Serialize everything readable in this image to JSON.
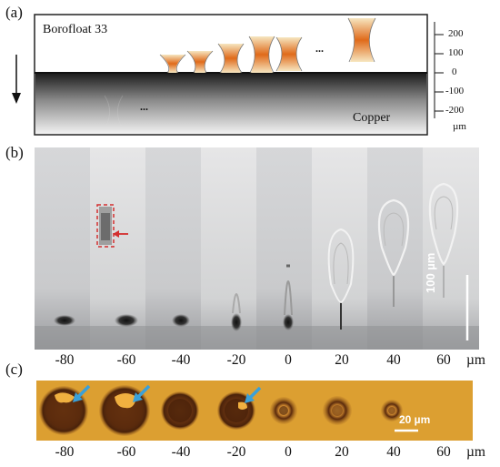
{
  "panel_a": {
    "label": "(a)",
    "top_material": "Borofloat 33",
    "bottom_material": "Copper",
    "ellipsis_top": "...",
    "ellipsis_bottom": "...",
    "scale": {
      "ticks": [
        "200",
        "100",
        "0",
        "-100",
        "-200"
      ],
      "unit": "µm"
    }
  },
  "panel_b": {
    "label": "(b)",
    "scale_bar": "100 µm",
    "positions": [
      "-80",
      "-60",
      "-40",
      "-20",
      "0",
      "20",
      "40",
      "60"
    ],
    "unit": "µm",
    "colors": {
      "highlight_box": "#d32f2f",
      "arrow": "#d32f2f"
    }
  },
  "panel_c": {
    "label": "(c)",
    "scale_bar": "20 µm",
    "positions": [
      "-80",
      "-60",
      "-40",
      "-20",
      "0",
      "20",
      "40",
      "60"
    ],
    "unit": "µm",
    "colors": {
      "background": "#d99a2a",
      "spot": "#6b3512",
      "arrow": "#3aa0d8"
    }
  }
}
